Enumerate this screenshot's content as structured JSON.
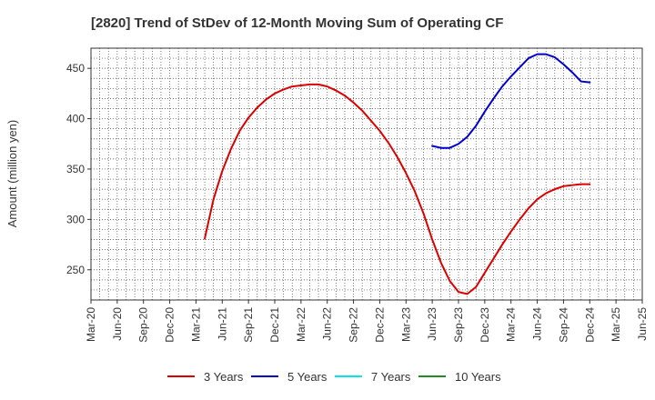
{
  "chart_data": {
    "type": "line",
    "title": "[2820]  Trend of StDev of 12-Month Moving Sum of Operating CF",
    "xlabel": "",
    "ylabel": "Amount (million yen)",
    "x_ticks": [
      "Mar-20",
      "Jun-20",
      "Sep-20",
      "Dec-20",
      "Mar-21",
      "Jun-21",
      "Sep-21",
      "Dec-21",
      "Mar-22",
      "Jun-22",
      "Sep-22",
      "Dec-22",
      "Mar-23",
      "Jun-23",
      "Sep-23",
      "Dec-23",
      "Mar-24",
      "Jun-24",
      "Sep-24",
      "Dec-24",
      "Mar-25",
      "Jun-25"
    ],
    "y_ticks": [
      250,
      300,
      350,
      400,
      450
    ],
    "ylim": [
      220,
      470
    ],
    "grid": true,
    "legend_position": "bottom",
    "series": [
      {
        "name": "3 Years",
        "color": "#dd0000",
        "x": [
          "2021-04",
          "2021-05",
          "2021-06",
          "2021-07",
          "2021-08",
          "2021-09",
          "2021-10",
          "2021-11",
          "2021-12",
          "2022-01",
          "2022-02",
          "2022-03",
          "2022-04",
          "2022-05",
          "2022-06",
          "2022-07",
          "2022-08",
          "2022-09",
          "2022-10",
          "2022-11",
          "2022-12",
          "2023-01",
          "2023-02",
          "2023-03",
          "2023-04",
          "2023-05",
          "2023-06",
          "2023-07",
          "2023-08",
          "2023-09",
          "2023-10",
          "2023-11",
          "2023-12",
          "2024-01",
          "2024-02",
          "2024-03",
          "2024-04",
          "2024-05",
          "2024-06",
          "2024-07",
          "2024-08",
          "2024-09",
          "2024-10",
          "2024-11",
          "2024-12"
        ],
        "values": [
          281,
          320,
          348,
          370,
          388,
          401,
          411,
          419,
          425,
          429,
          432,
          433,
          434,
          434,
          432,
          428,
          423,
          416,
          408,
          398,
          388,
          376,
          362,
          346,
          328,
          306,
          280,
          257,
          239,
          228,
          226,
          233,
          247,
          261,
          275,
          288,
          300,
          311,
          320,
          326,
          330,
          333,
          334,
          335,
          335
        ]
      },
      {
        "name": "5 Years",
        "color": "#0000cc",
        "x": [
          "2023-06",
          "2023-07",
          "2023-08",
          "2023-09",
          "2023-10",
          "2023-11",
          "2023-12",
          "2024-01",
          "2024-02",
          "2024-03",
          "2024-04",
          "2024-05",
          "2024-06",
          "2024-07",
          "2024-08",
          "2024-09",
          "2024-10",
          "2024-11",
          "2024-12"
        ],
        "values": [
          373,
          371,
          371,
          375,
          382,
          393,
          407,
          420,
          432,
          442,
          451,
          460,
          464,
          464,
          461,
          454,
          446,
          437,
          436
        ]
      },
      {
        "name": "7 Years",
        "color": "#00e5ee",
        "x": [],
        "values": []
      },
      {
        "name": "10 Years",
        "color": "#228b22",
        "x": [],
        "values": []
      }
    ]
  }
}
